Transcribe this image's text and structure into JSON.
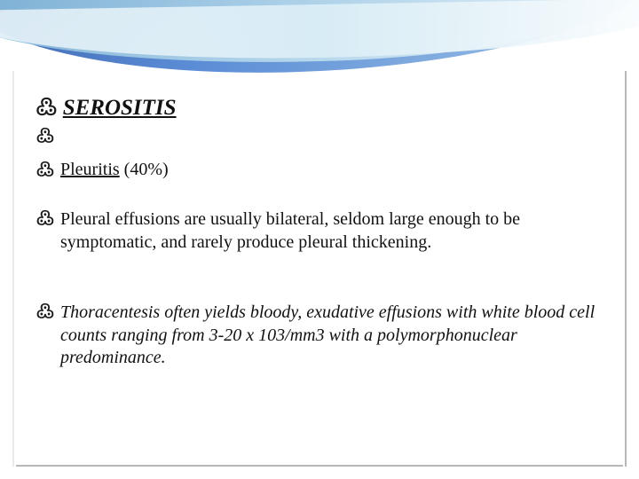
{
  "colors": {
    "wave_dark": "#3a5fa8",
    "wave_mid": "#5b8dd6",
    "wave_light": "#a8cce8",
    "wave_pale": "#c8e4f0",
    "text": "#1a1a1a",
    "frame": "#b8b8b8",
    "background": "#ffffff"
  },
  "typography": {
    "body_font": "Georgia",
    "bullet_font": "Segoe Script",
    "heading_size_pt": 19,
    "subheading_size_pt": 15,
    "body_size_pt": 15
  },
  "bullet_glyph": "་∼",
  "heading": "SEROSITIS",
  "subheading_underlined": "Pleuritis",
  "subheading_rest": " (40%)",
  "para1": " Pleural effusions are usually bilateral, seldom large enough to be  symptomatic, and rarely produce pleural thickening.",
  "para2": "Thoracentesis often yields bloody, exudative effusions with white blood cell counts ranging from 3-20 x 103/mm3 with a polymorphonuclear predominance."
}
